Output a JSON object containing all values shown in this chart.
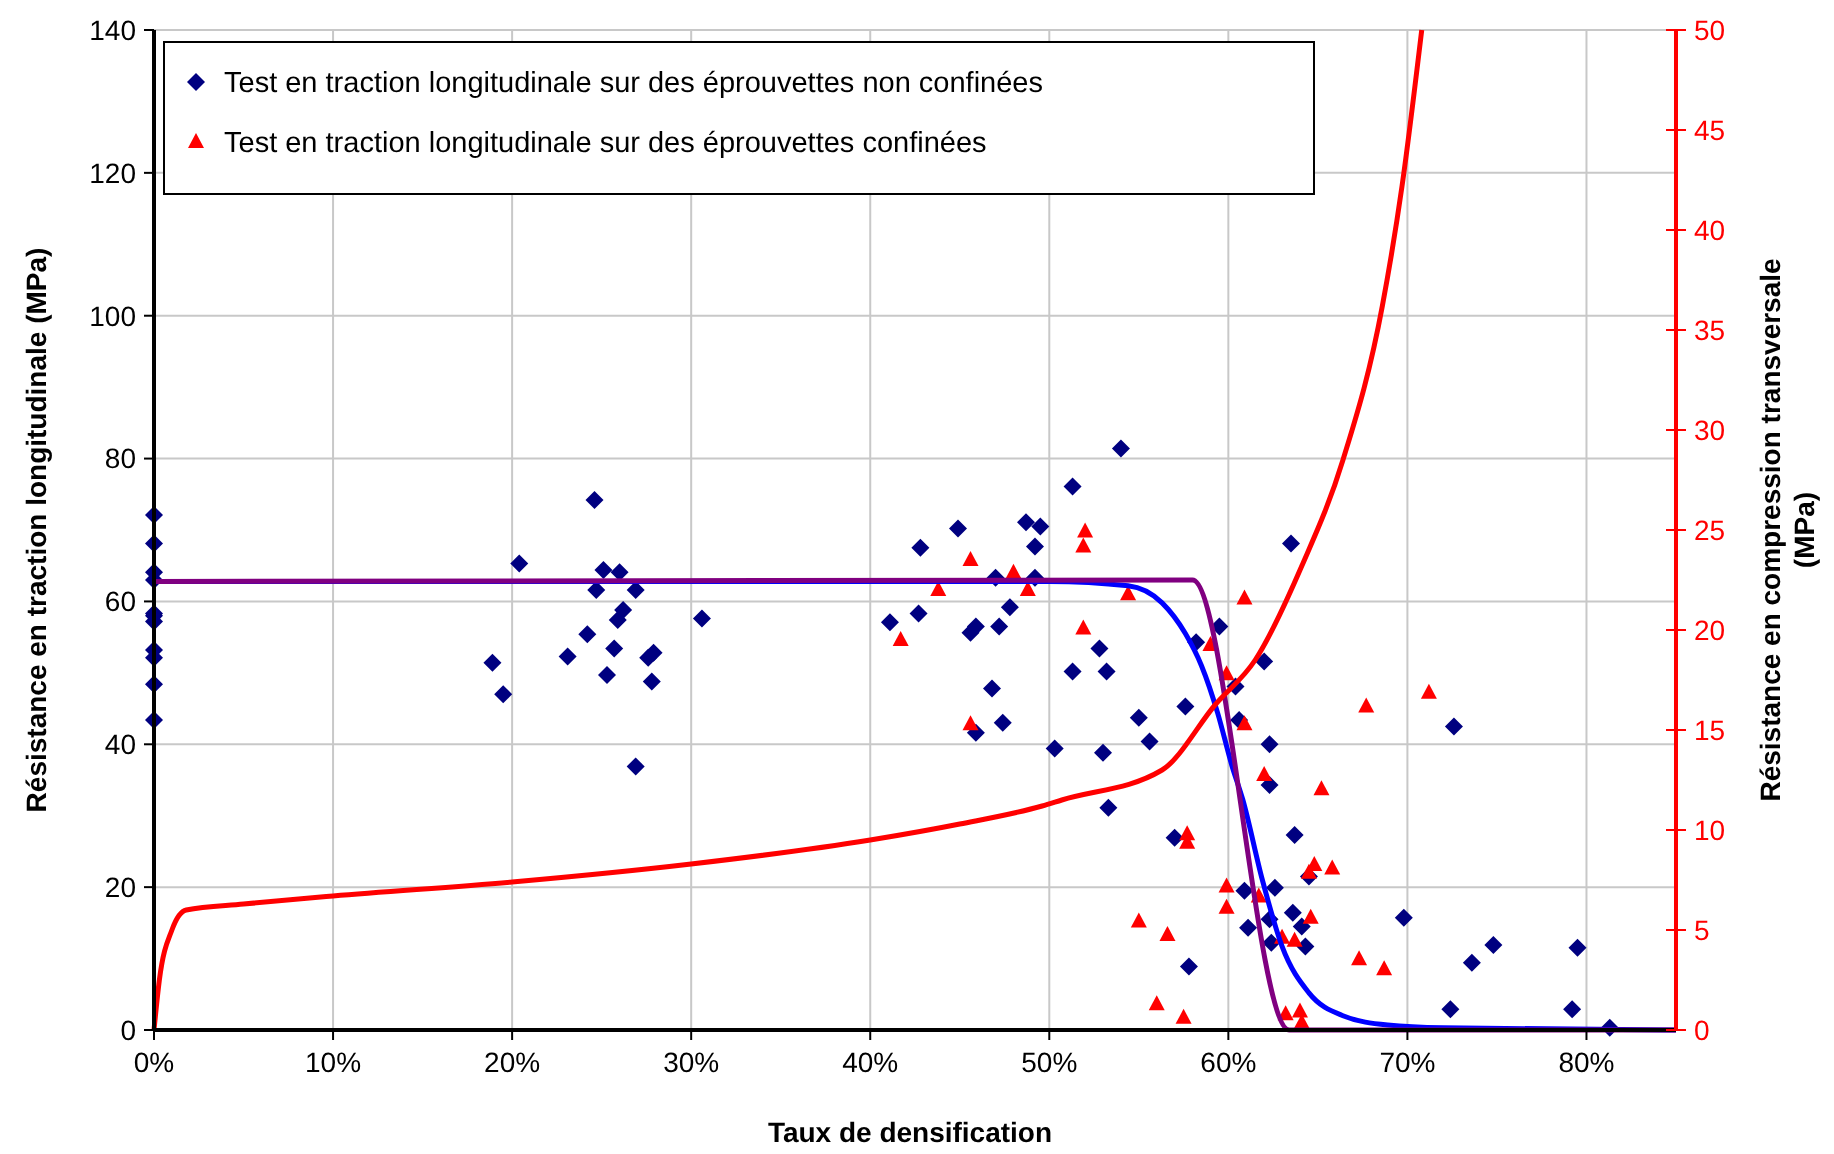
{
  "chart_data": {
    "type": "scatter",
    "xlabel": "Taux de densification",
    "ylabel": "Résistance en traction longitudinale (MPa)",
    "y2label": "Résistance en compression transversale\n(MPa)",
    "xlim": [
      0,
      85
    ],
    "xticks": [
      {
        "value": 0,
        "label": "0%"
      },
      {
        "value": 10,
        "label": "10%"
      },
      {
        "value": 20,
        "label": "20%"
      },
      {
        "value": 30,
        "label": "30%"
      },
      {
        "value": 40,
        "label": "40%"
      },
      {
        "value": 50,
        "label": "50%"
      },
      {
        "value": 60,
        "label": "60%"
      },
      {
        "value": 70,
        "label": "70%"
      },
      {
        "value": 80,
        "label": "80%"
      }
    ],
    "ylim": [
      0,
      140
    ],
    "yticks": [
      0,
      20,
      40,
      60,
      80,
      100,
      120,
      140
    ],
    "y2lim": [
      0,
      50
    ],
    "y2ticks": [
      0,
      5,
      10,
      15,
      20,
      25,
      30,
      35,
      40,
      45,
      50
    ],
    "grid": true,
    "legend": "top left",
    "series": [
      {
        "name": "Test en traction longitudinale sur des éprouvettes non confinées",
        "marker": "diamond",
        "color": "#000080",
        "x": [
          0,
          0,
          0,
          0,
          0,
          0,
          0,
          0,
          0,
          0,
          0,
          18.9,
          19.5,
          20.4,
          24.6,
          25.1,
          26.0,
          24.7,
          26.9,
          26.2,
          25.9,
          24.2,
          23.1,
          25.7,
          25.3,
          27.9,
          27.6,
          27.8,
          26.9,
          30.6,
          54.0,
          51.3,
          44.9,
          42.8,
          48.7,
          49.5,
          49.2,
          63.5,
          47.0,
          49.2,
          47.8,
          41.1,
          42.7,
          45.9,
          45.6,
          47.2,
          52.8,
          59.5,
          58.2,
          51.3,
          53.2,
          62.0,
          46.8,
          60.4,
          55.0,
          45.9,
          47.4,
          57.6,
          55.6,
          60.6,
          50.3,
          53.0,
          62.3,
          62.3,
          53.3,
          57.0,
          63.7,
          64.5,
          60.9,
          62.6,
          63.6,
          61.1,
          62.3,
          64.1,
          64.3,
          62.4,
          57.8,
          69.8,
          72.6,
          74.8,
          73.6,
          79.5,
          72.4,
          79.2,
          81.3
        ],
        "values": [
          72.1,
          68.1,
          64.1,
          63.0,
          58.3,
          58.0,
          57.2,
          53.2,
          52.1,
          48.4,
          43.4,
          51.4,
          47.0,
          65.3,
          74.2,
          64.4,
          64.1,
          61.6,
          61.6,
          58.8,
          57.4,
          55.4,
          52.3,
          53.4,
          49.7,
          52.8,
          52.1,
          48.8,
          36.9,
          57.6,
          81.4,
          76.1,
          70.2,
          67.5,
          71.1,
          70.5,
          67.7,
          68.1,
          63.3,
          63.3,
          59.2,
          57.1,
          58.3,
          56.5,
          55.6,
          56.5,
          53.4,
          56.5,
          54.3,
          50.2,
          50.2,
          51.6,
          47.8,
          48.1,
          43.7,
          41.6,
          43.0,
          45.3,
          40.4,
          43.4,
          39.4,
          38.8,
          40.0,
          34.3,
          31.1,
          26.9,
          27.3,
          21.5,
          19.5,
          19.9,
          16.4,
          14.3,
          15.5,
          14.5,
          11.7,
          12.2,
          8.9,
          15.7,
          42.5,
          11.9,
          9.4,
          11.5,
          2.9,
          2.9,
          0.3
        ]
      },
      {
        "name": "Test en traction longitudinale sur des éprouvettes confinées",
        "marker": "triangle",
        "color": "#ff0000",
        "x": [
          45.6,
          48.0,
          43.8,
          48.8,
          52.0,
          51.9,
          54.4,
          41.7,
          51.9,
          60.9,
          59.0,
          59.9,
          60.9,
          45.6,
          62.0,
          67.7,
          71.2,
          65.2,
          57.7,
          57.7,
          64.8,
          65.8,
          64.5,
          59.9,
          59.9,
          61.7,
          64.6,
          55.0,
          56.6,
          63.0,
          63.7,
          67.3,
          68.7,
          56.0,
          57.5,
          63.2,
          64.0,
          64.1
        ],
        "values": [
          65.8,
          64.0,
          61.6,
          61.6,
          69.8,
          67.7,
          61.0,
          54.6,
          56.2,
          60.4,
          53.9,
          49.8,
          42.8,
          42.8,
          35.7,
          45.3,
          47.2,
          33.7,
          27.4,
          26.2,
          23.1,
          22.6,
          22.0,
          20.1,
          17.1,
          18.7,
          15.7,
          15.2,
          13.3,
          12.9,
          12.5,
          9.9,
          8.5,
          3.6,
          1.7,
          2.2,
          2.6,
          1.0
        ]
      },
      {
        "type": "line",
        "color": "#0000ff",
        "x": [
          0,
          50,
          54.4,
          56.3,
          57.6,
          58.5,
          59.4,
          60.2,
          60.8,
          61.9,
          63.0,
          64.5,
          66.4,
          68.9,
          72,
          85
        ],
        "values": [
          62.8,
          62.8,
          62.2,
          59.8,
          55.5,
          51,
          44.4,
          37,
          32.3,
          21,
          11.7,
          5.2,
          2,
          0.7,
          0.3,
          0
        ]
      },
      {
        "type": "line",
        "color": "#800080",
        "x": [
          0,
          58.0,
          63.4,
          85
        ],
        "values": [
          62.8,
          63.0,
          0,
          0
        ]
      },
      {
        "type": "line",
        "color": "#ff0000",
        "axis": "y2",
        "x": [
          0,
          0.3,
          1,
          1.8,
          5,
          10,
          20,
          30,
          40,
          45,
          49.6,
          50.7,
          56.3,
          59.3,
          61.5,
          64.1,
          66.4,
          68.6,
          69.7,
          70.8
        ],
        "values": [
          0,
          2.5,
          5,
          6.0,
          6.3,
          6.7,
          7.4,
          8.3,
          9.5,
          10.3,
          11.2,
          11.5,
          13.0,
          16.3,
          18.5,
          23.2,
          28.5,
          36.2,
          42.2,
          50
        ]
      }
    ]
  }
}
